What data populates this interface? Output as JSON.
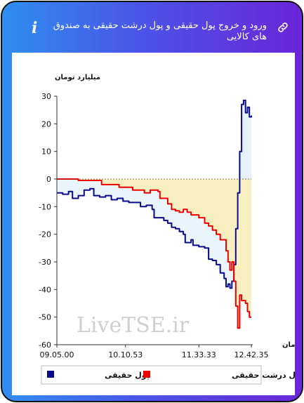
{
  "header": {
    "title": "ورود و خروج پول حقیقی و پول درشت حقیقی به صندوق های کالایی",
    "info_icon": "info-icon",
    "link_icon": "link-icon"
  },
  "watermark": "LiveTSE.ir",
  "colors": {
    "real_money": "#0a0a8c",
    "big_real_money": "#ee0000",
    "fill_positive": "#e6f2fa",
    "fill_negative": "#f7efc0",
    "fill_cross": "#e9f5fa"
  },
  "chart_data": {
    "type": "line",
    "ylabel": "میلیارد تومان",
    "xlabel": "زمان",
    "ylim": [
      -60,
      30
    ],
    "yticks": [
      30,
      20,
      10,
      0,
      -10,
      -20,
      -30,
      -40,
      -50,
      -60
    ],
    "xticks": [
      "09.05.00",
      "10.10.53",
      "11.33.33",
      "12.42.35"
    ],
    "x_index_range": [
      0,
      100
    ],
    "xtick_positions": [
      0,
      35.3,
      73,
      100
    ],
    "series": [
      {
        "name": "پول حقیقی",
        "color": "#0a0a8c",
        "points": [
          [
            0,
            -5
          ],
          [
            3,
            -5.5
          ],
          [
            6,
            -4.5
          ],
          [
            8,
            -7
          ],
          [
            11,
            -6
          ],
          [
            14,
            -4
          ],
          [
            17,
            -3.5
          ],
          [
            19,
            -6
          ],
          [
            22,
            -6.5
          ],
          [
            25,
            -6
          ],
          [
            28,
            -7.5
          ],
          [
            31,
            -7
          ],
          [
            34,
            -8
          ],
          [
            37,
            -8.5
          ],
          [
            40,
            -8.5
          ],
          [
            43,
            -10
          ],
          [
            46,
            -9.5
          ],
          [
            49,
            -11
          ],
          [
            50,
            -14
          ],
          [
            53,
            -14
          ],
          [
            55,
            -15
          ],
          [
            57,
            -16
          ],
          [
            59,
            -17.5
          ],
          [
            61,
            -18
          ],
          [
            63,
            -19
          ],
          [
            65,
            -20
          ],
          [
            66,
            -23
          ],
          [
            69,
            -22
          ],
          [
            70,
            -24
          ],
          [
            73,
            -24.5
          ],
          [
            76,
            -25
          ],
          [
            77,
            -25
          ],
          [
            78,
            -29
          ],
          [
            80,
            -29.5
          ],
          [
            82,
            -31
          ],
          [
            84,
            -34
          ],
          [
            86,
            -36
          ],
          [
            87,
            -39
          ],
          [
            88,
            -38
          ],
          [
            89,
            -39.5
          ],
          [
            90,
            -37
          ],
          [
            91,
            -31
          ],
          [
            92,
            -18
          ],
          [
            93,
            -5
          ],
          [
            94,
            10
          ],
          [
            95,
            27
          ],
          [
            96,
            28.5
          ],
          [
            97,
            24
          ],
          [
            98,
            26
          ],
          [
            99,
            22.5
          ],
          [
            100,
            23
          ]
        ]
      },
      {
        "name": "پول درشت حقیقی",
        "color": "#ee0000",
        "points": [
          [
            0,
            0
          ],
          [
            10,
            0
          ],
          [
            11,
            -0.5
          ],
          [
            22,
            -0.5
          ],
          [
            23,
            -2
          ],
          [
            31,
            -2
          ],
          [
            32,
            -3
          ],
          [
            38,
            -3
          ],
          [
            39,
            -4
          ],
          [
            43,
            -4
          ],
          [
            45,
            -5
          ],
          [
            47,
            -5
          ],
          [
            48,
            -4
          ],
          [
            50,
            -4
          ],
          [
            52,
            -4.5
          ],
          [
            53,
            -7
          ],
          [
            55,
            -7
          ],
          [
            57,
            -9
          ],
          [
            59,
            -11
          ],
          [
            61,
            -11.5
          ],
          [
            63,
            -12
          ],
          [
            65,
            -11
          ],
          [
            67,
            -12
          ],
          [
            69,
            -13
          ],
          [
            71,
            -13
          ],
          [
            73,
            -14
          ],
          [
            76,
            -16
          ],
          [
            78,
            -17
          ],
          [
            80,
            -18.5
          ],
          [
            82,
            -20
          ],
          [
            84,
            -22
          ],
          [
            86,
            -22
          ],
          [
            87,
            -26
          ],
          [
            88,
            -30
          ],
          [
            89,
            -33
          ],
          [
            90,
            -30
          ],
          [
            91,
            -37
          ],
          [
            92,
            -46
          ],
          [
            93,
            -54
          ],
          [
            94,
            -42
          ],
          [
            95,
            -44
          ],
          [
            97,
            -45
          ],
          [
            98,
            -48
          ],
          [
            99,
            -50
          ],
          [
            100,
            -50
          ]
        ]
      }
    ],
    "legend": {
      "placement": "bottom",
      "items": [
        {
          "label": "پول حقیقی",
          "color": "#0a0a8c"
        },
        {
          "label": "پول درشت حقیقی",
          "color": "#ee0000"
        }
      ]
    }
  }
}
